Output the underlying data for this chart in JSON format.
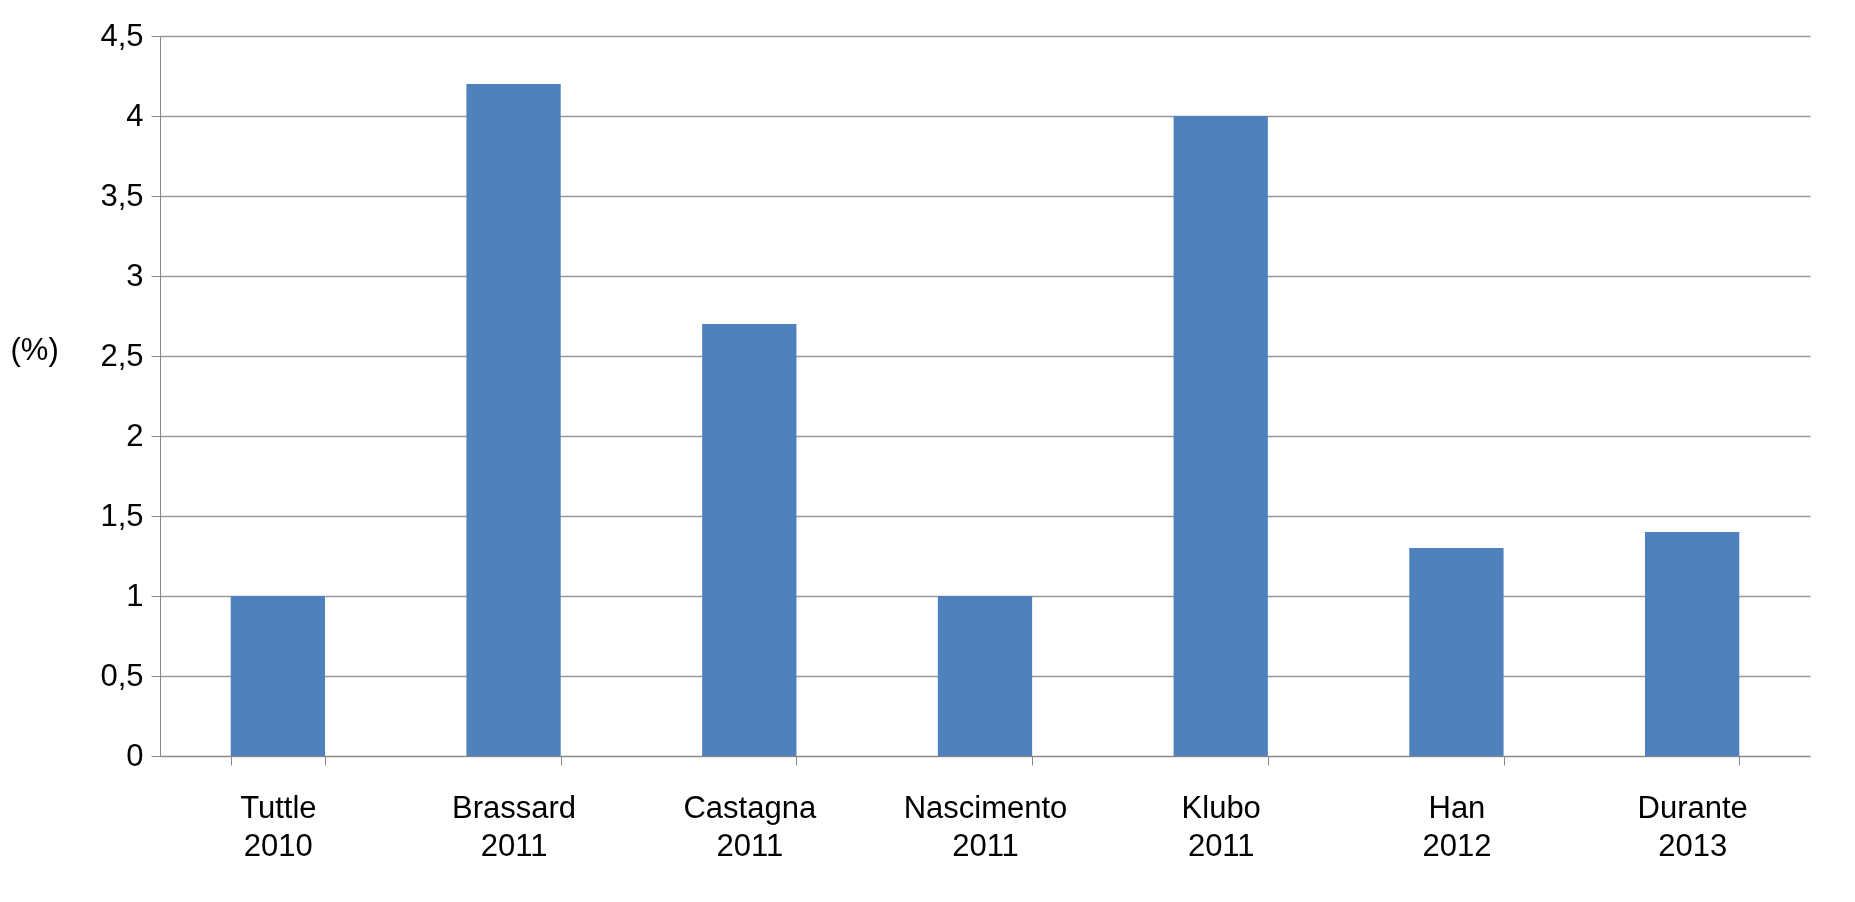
{
  "chart_data": {
    "type": "bar",
    "ylabel": "(%)",
    "categories": [
      "Tuttle\n2010",
      "Brassard\n2011",
      "Castagna\n2011",
      "Nascimento\n2011",
      "Klubo\n2011",
      "Han\n2012",
      "Durante\n2013"
    ],
    "values": [
      1,
      4.2,
      2.7,
      1,
      4,
      1.3,
      1.4
    ],
    "color": "#4f81bd",
    "ylim": [
      0,
      4.5
    ],
    "yticks": [
      0,
      {
        "value": 0.5,
        "label": "0,5"
      },
      1,
      {
        "value": 1.5,
        "label": "1,5"
      },
      2,
      {
        "value": 2.5,
        "label": "2,5"
      },
      3,
      {
        "value": 3.5,
        "label": "3,5"
      },
      4,
      {
        "value": 4.5,
        "label": "4,5"
      }
    ],
    "grid": "y"
  }
}
